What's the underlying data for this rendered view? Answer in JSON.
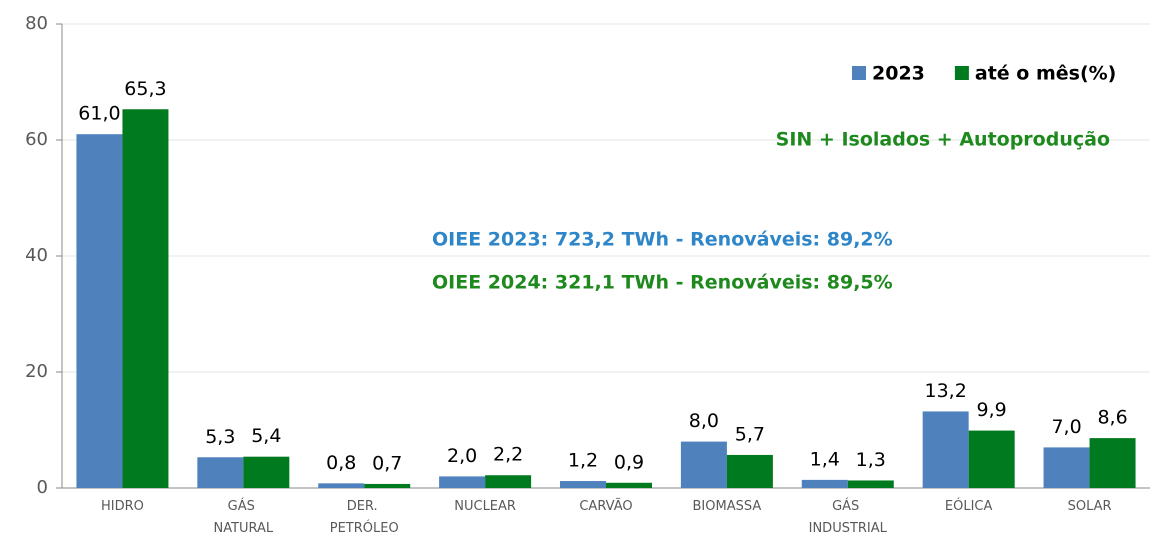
{
  "chart_data": {
    "type": "bar",
    "categories": [
      "HIDRO",
      "GÁS NATURAL",
      "DER. PETRÓLEO",
      "NUCLEAR",
      "CARVÃO",
      "BIOMASSA",
      "GÁS INDUSTRIAL",
      "EÓLICA",
      "SOLAR"
    ],
    "series": [
      {
        "name": "2023",
        "color": "#4f81bd",
        "values": [
          61.0,
          5.3,
          0.8,
          2.0,
          1.2,
          8.0,
          1.4,
          13.2,
          7.0
        ],
        "value_labels": [
          "61,0",
          "5,3",
          "0,8",
          "2,0",
          "1,2",
          "8,0",
          "1,4",
          "13,2",
          "7,0"
        ]
      },
      {
        "name": "até o mês(%)",
        "color": "#007a1e",
        "values": [
          65.3,
          5.4,
          0.7,
          2.2,
          0.9,
          5.7,
          1.3,
          9.9,
          8.6
        ],
        "value_labels": [
          "65,3",
          "5,4",
          "0,7",
          "2,2",
          "0,9",
          "5,7",
          "1,3",
          "9,9",
          "8,6"
        ]
      }
    ],
    "ylim": [
      0,
      80
    ],
    "yticks": [
      0,
      20,
      40,
      60,
      80
    ],
    "grid": true,
    "legend": "top-right",
    "annotations": [
      {
        "text": "SIN + Isolados + Autoprodução",
        "color": "#1e8a1e"
      },
      {
        "text": "OIEE 2023: 723,2 TWh - Renováveis: 89,2%",
        "color": "#2e86c8"
      },
      {
        "text": "OIEE 2024: 321,1 TWh - Renováveis: 89,5%",
        "color": "#1e8a1e"
      }
    ]
  }
}
